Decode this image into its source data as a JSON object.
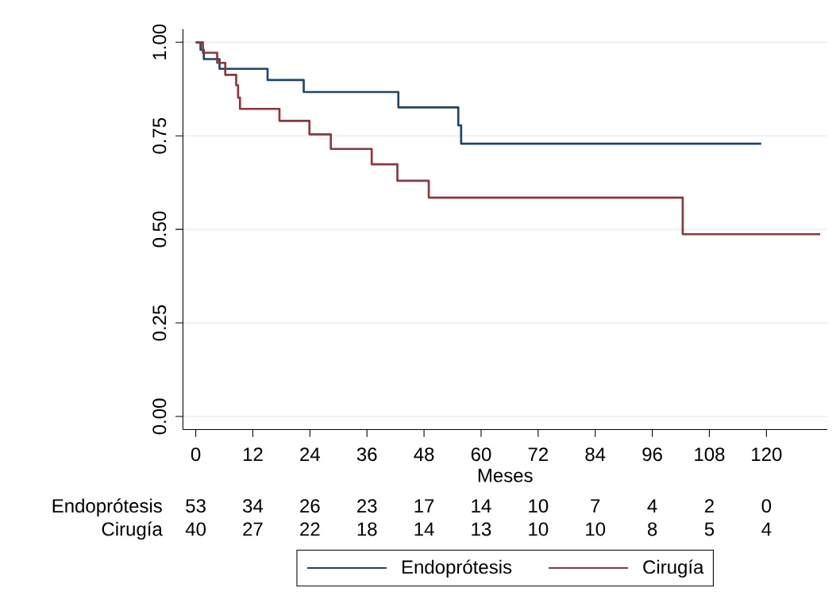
{
  "chart_data": {
    "type": "step",
    "xlabel": "Meses",
    "xlim": [
      -2.7,
      132.8
    ],
    "ylim": [
      -0.035,
      1.035
    ],
    "xticks": [
      0,
      12,
      24,
      36,
      48,
      60,
      72,
      84,
      96,
      108,
      120
    ],
    "yticks": [
      {
        "value": 0,
        "label": "0.00"
      },
      {
        "value": 0.25,
        "label": "0.25"
      },
      {
        "value": 0.5,
        "label": "0.50"
      },
      {
        "value": 0.75,
        "label": "0.75"
      },
      {
        "value": 1,
        "label": "1.00"
      }
    ],
    "grid": "y",
    "legend": "bottom",
    "series": [
      {
        "name": "Endoprótesis",
        "color": "#1a476f",
        "x": [
          0,
          1.0,
          1.7,
          5.0,
          15.1,
          22.7,
          42.6,
          55.2,
          55.8,
          118.9
        ],
        "values": [
          1,
          0.98,
          0.955,
          0.929,
          0.899,
          0.867,
          0.826,
          0.778,
          0.729,
          0.729
        ]
      },
      {
        "name": "Cirugía",
        "color": "#90353b",
        "x": [
          0,
          1.5,
          4.5,
          6.2,
          8.5,
          8.9,
          9.3,
          17.6,
          23.9,
          28.4,
          37.0,
          42.4,
          49.0,
          102.4,
          131.3
        ],
        "values": [
          1,
          0.972,
          0.945,
          0.913,
          0.885,
          0.852,
          0.822,
          0.79,
          0.754,
          0.715,
          0.674,
          0.63,
          0.585,
          0.487,
          0.487
        ]
      }
    ],
    "annotations": [
      "Endoprótesis",
      "53",
      "34",
      "26",
      "23",
      "17",
      "14",
      "10",
      "7",
      "4",
      "2",
      "0",
      "Cirugía",
      "40",
      "27",
      "22",
      "18",
      "14",
      "13",
      "10",
      "10",
      "8",
      "5",
      "4"
    ]
  }
}
